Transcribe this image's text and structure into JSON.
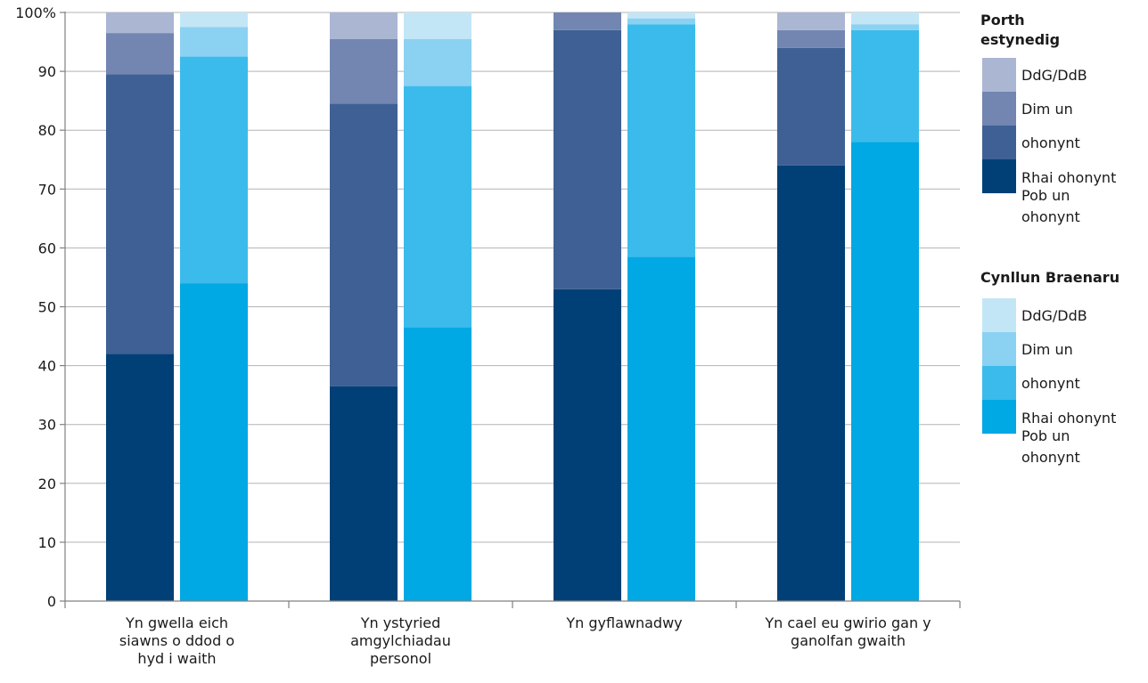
{
  "chart_data": {
    "type": "bar",
    "stacked": true,
    "ylim": [
      0,
      100
    ],
    "yticks": [
      "0",
      "10",
      "20",
      "30",
      "40",
      "50",
      "60",
      "70",
      "80",
      "90",
      "100%"
    ],
    "categories": [
      "Yn gwella eich siawns o ddod o hyd i  waith",
      "Yn ystyried amgylchiadau personol",
      "Yn gyflawnadwy",
      "Yn cael eu gwirio gan y ganolfan gwaith"
    ],
    "category_lines": [
      [
        "Yn gwella eich",
        "siawns o ddod o",
        "hyd i  waith"
      ],
      [
        "Yn ystyried",
        "amgylchiadau",
        "personol"
      ],
      [
        "Yn gyflawnadwy"
      ],
      [
        "Yn cael eu gwirio gan y",
        "ganolfan gwaith"
      ]
    ],
    "groups": [
      {
        "name": "Porth estynedig",
        "title_lines": [
          "Porth",
          "estynedig"
        ],
        "segment_colors": [
          "#004077",
          "#3f6094",
          "#7286b1",
          "#abb6d3"
        ],
        "values": [
          [
            42,
            47.5,
            7,
            3.5
          ],
          [
            36.5,
            48,
            11,
            4.5
          ],
          [
            53,
            44,
            3,
            0
          ],
          [
            74,
            20,
            3,
            3
          ]
        ]
      },
      {
        "name": "Cynllun Braenaru",
        "title_lines": [
          "Cynllun Braenaru"
        ],
        "segment_colors": [
          "#00a8e4",
          "#3bbbeb",
          "#8bd1f1",
          "#c3e6f7"
        ],
        "values": [
          [
            54,
            38.5,
            5,
            2.5
          ],
          [
            46.5,
            41,
            8,
            4.5
          ],
          [
            58.5,
            39.5,
            1,
            1
          ],
          [
            78,
            19,
            1,
            2
          ]
        ]
      }
    ],
    "legend_entries": [
      "DdG/DdB",
      "Dim un",
      "ohonynt",
      "Rhai ohonynt",
      "Pob un",
      "ohonynt"
    ],
    "gridlines": true,
    "legend_position": "right"
  }
}
